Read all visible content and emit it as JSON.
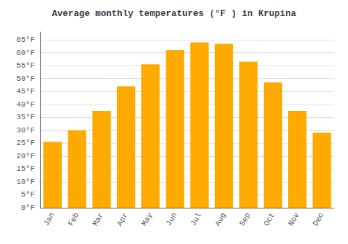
{
  "chart_data": {
    "type": "bar",
    "title": "Average monthly temperatures (°F ) in Krupina",
    "categories": [
      "Jan",
      "Feb",
      "Mar",
      "Apr",
      "May",
      "Jun",
      "Jul",
      "Aug",
      "Sep",
      "Oct",
      "Nov",
      "Dec"
    ],
    "values": [
      25.5,
      30.0,
      37.5,
      47.0,
      55.5,
      61.0,
      64.0,
      63.5,
      56.5,
      48.5,
      37.5,
      29.0
    ],
    "color": "#FFAA00",
    "ylim": [
      0,
      68
    ],
    "yticks": [
      {
        "value": 0,
        "label": "0°F"
      },
      {
        "value": 5,
        "label": "5°F"
      },
      {
        "value": 10,
        "label": "10°F"
      },
      {
        "value": 15,
        "label": "15°F"
      },
      {
        "value": 20,
        "label": "20°F"
      },
      {
        "value": 25,
        "label": "25°F"
      },
      {
        "value": 30,
        "label": "30°F"
      },
      {
        "value": 35,
        "label": "35°F"
      },
      {
        "value": 40,
        "label": "40°F"
      },
      {
        "value": 45,
        "label": "45°F"
      },
      {
        "value": 50,
        "label": "50°F"
      },
      {
        "value": 55,
        "label": "55°F"
      },
      {
        "value": 60,
        "label": "60°F"
      },
      {
        "value": 65,
        "label": "65°F"
      }
    ],
    "grid": true
  }
}
